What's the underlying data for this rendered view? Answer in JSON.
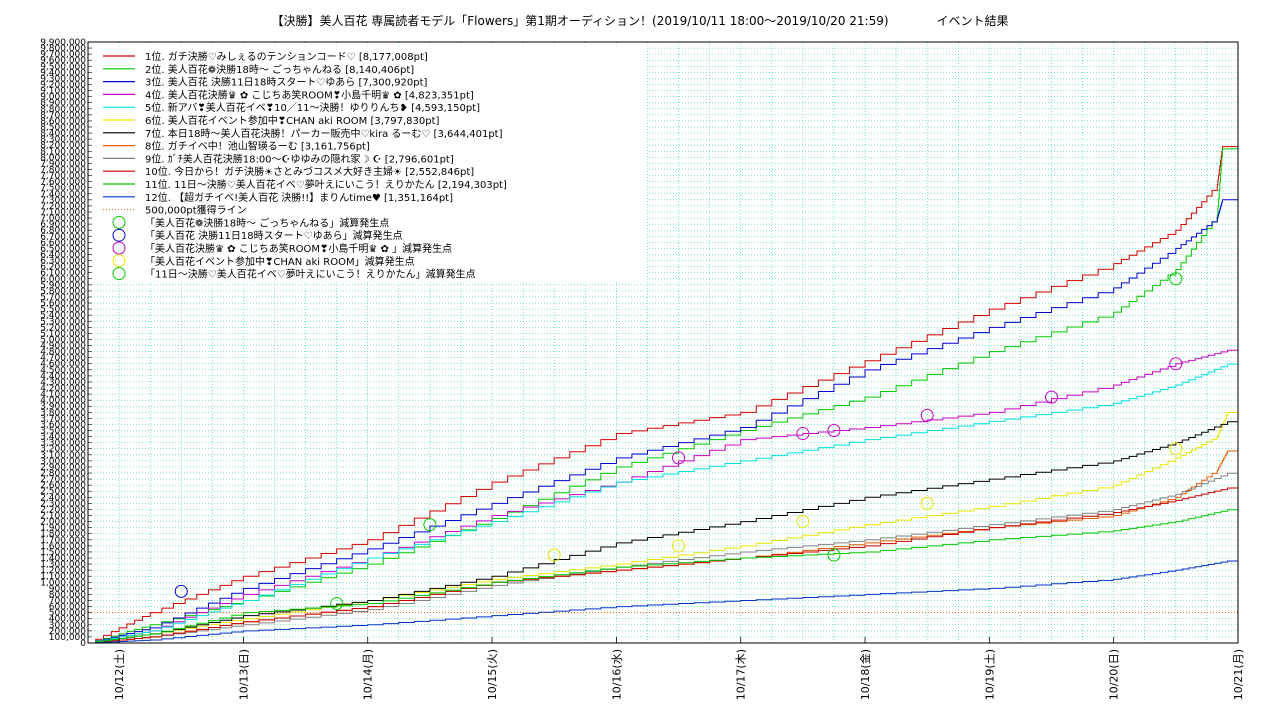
{
  "chart_data": {
    "type": "line",
    "title": "【決勝】美人百花 専属読者モデル「Flowers」第1期オーディション！(2019/10/11 18:00〜2019/10/20 21:59)　　　　イベント結果",
    "xlabel": "",
    "ylabel": "",
    "x_ticks": [
      "10/12(土)",
      "10/13(日)",
      "10/14(月)",
      "10/15(火)",
      "10/16(水)",
      "10/17(木)",
      "10/18(金)",
      "10/19(土)",
      "10/20(日)",
      "10/21(月)"
    ],
    "x_range": [
      "2019-10-11 18:00",
      "2019-10-21 00:00"
    ],
    "ylim": [
      0,
      9900000
    ],
    "y_tick_step": 100000,
    "grid": true,
    "legend_position": "top-left",
    "series": [
      {
        "name": "1位. ガチ決勝♡みしぇるのテンションコード♡ [8,177,008pt]",
        "color": "#d40000",
        "x": [
          "2019-10-11 18:00",
          "2019-10-12 06:00",
          "2019-10-13 00:00",
          "2019-10-14 00:00",
          "2019-10-15 00:00",
          "2019-10-16 00:00",
          "2019-10-17 00:00",
          "2019-10-18 00:00",
          "2019-10-19 00:00",
          "2019-10-20 00:00",
          "2019-10-20 12:00",
          "2019-10-20 20:00",
          "2019-10-20 21:00",
          "2019-10-20 21:59"
        ],
        "values": [
          0,
          500000,
          1100000,
          1700000,
          2650000,
          3450000,
          3800000,
          4650000,
          5500000,
          6250000,
          6800000,
          7550000,
          8177008,
          8177008
        ]
      },
      {
        "name": "2位. 美人百花❁決勝18時〜 ごっちゃんねる [8,140,406pt]",
        "color": "#00c800",
        "x": [
          "2019-10-11 18:00",
          "2019-10-12 06:00",
          "2019-10-13 00:00",
          "2019-10-14 00:00",
          "2019-10-15 00:00",
          "2019-10-16 00:00",
          "2019-10-17 00:00",
          "2019-10-18 00:00",
          "2019-10-19 00:00",
          "2019-10-20 00:00",
          "2019-10-20 12:00",
          "2019-10-20 20:00",
          "2019-10-20 21:00",
          "2019-10-20 21:59"
        ],
        "values": [
          0,
          300000,
          700000,
          1300000,
          2050000,
          2900000,
          3500000,
          4050000,
          4800000,
          5450000,
          6150000,
          7050000,
          8140406,
          8140406
        ]
      },
      {
        "name": "3位. 美人百花 決勝11日18時スタート♡ゆあら [7,300,920pt]",
        "color": "#0000d4",
        "x": [
          "2019-10-11 18:00",
          "2019-10-12 06:00",
          "2019-10-13 00:00",
          "2019-10-14 00:00",
          "2019-10-15 00:00",
          "2019-10-16 00:00",
          "2019-10-17 00:00",
          "2019-10-18 00:00",
          "2019-10-19 00:00",
          "2019-10-20 00:00",
          "2019-10-20 12:00",
          "2019-10-20 20:00",
          "2019-10-20 21:00",
          "2019-10-20 21:59"
        ],
        "values": [
          0,
          250000,
          900000,
          1550000,
          2300000,
          3050000,
          3550000,
          4500000,
          5200000,
          5850000,
          6500000,
          7000000,
          7300920,
          7300920
        ]
      },
      {
        "name": "4位. 美人百花決勝♛ ✿ こじちあ笑ROOM❣小島千明♛ ✿ [4,823,351pt]",
        "color": "#c800c8",
        "x": [
          "2019-10-11 18:00",
          "2019-10-12 06:00",
          "2019-10-13 00:00",
          "2019-10-14 00:00",
          "2019-10-15 00:00",
          "2019-10-16 00:00",
          "2019-10-17 00:00",
          "2019-10-18 00:00",
          "2019-10-19 00:00",
          "2019-10-20 00:00",
          "2019-10-20 12:00",
          "2019-10-20 21:59"
        ],
        "values": [
          0,
          200000,
          800000,
          1400000,
          2100000,
          2650000,
          3350000,
          3550000,
          3800000,
          4250000,
          4600000,
          4823351
        ]
      },
      {
        "name": "5位. 新アバ❣美人百花イベ❣10／11〜決勝！ゆりりんち❥ [4,593,150pt]",
        "color": "#00e0e0",
        "x": [
          "2019-10-11 18:00",
          "2019-10-12 06:00",
          "2019-10-13 00:00",
          "2019-10-14 00:00",
          "2019-10-15 00:00",
          "2019-10-16 00:00",
          "2019-10-17 00:00",
          "2019-10-18 00:00",
          "2019-10-19 00:00",
          "2019-10-20 00:00",
          "2019-10-20 12:00",
          "2019-10-20 21:59"
        ],
        "values": [
          0,
          200000,
          700000,
          1400000,
          2000000,
          2650000,
          3000000,
          3350000,
          3650000,
          3950000,
          4250000,
          4593150
        ]
      },
      {
        "name": "6位. 美人百花イベント参加中❣CHAN aki ROOM [3,797,830pt]",
        "color": "#e6e600",
        "x": [
          "2019-10-11 18:00",
          "2019-10-12 06:00",
          "2019-10-13 00:00",
          "2019-10-14 00:00",
          "2019-10-15 00:00",
          "2019-10-16 00:00",
          "2019-10-17 00:00",
          "2019-10-18 00:00",
          "2019-10-19 00:00",
          "2019-10-20 00:00",
          "2019-10-20 12:00",
          "2019-10-20 20:00",
          "2019-10-20 21:59"
        ],
        "values": [
          0,
          150000,
          400000,
          700000,
          1050000,
          1300000,
          1600000,
          1950000,
          2250000,
          2600000,
          3050000,
          3400000,
          3797830
        ]
      },
      {
        "name": "7位. 本日18時〜美人百花決勝！パーカー販売中♡kira るーむ♡ [3,644,401pt]",
        "color": "#000000",
        "x": [
          "2019-10-11 18:00",
          "2019-10-12 06:00",
          "2019-10-13 00:00",
          "2019-10-14 00:00",
          "2019-10-15 00:00",
          "2019-10-16 00:00",
          "2019-10-17 00:00",
          "2019-10-18 00:00",
          "2019-10-19 00:00",
          "2019-10-20 00:00",
          "2019-10-20 12:00",
          "2019-10-20 21:59"
        ],
        "values": [
          0,
          150000,
          450000,
          700000,
          1100000,
          1650000,
          2000000,
          2400000,
          2700000,
          3000000,
          3300000,
          3644401
        ]
      },
      {
        "name": "8位. ガチイベ中！池山智瑛るーむ [3,161,756pt]",
        "color": "#e65a00",
        "x": [
          "2019-10-11 18:00",
          "2019-10-12 06:00",
          "2019-10-13 00:00",
          "2019-10-14 00:00",
          "2019-10-15 00:00",
          "2019-10-16 00:00",
          "2019-10-17 00:00",
          "2019-10-18 00:00",
          "2019-10-19 00:00",
          "2019-10-20 00:00",
          "2019-10-20 12:00",
          "2019-10-20 20:00",
          "2019-10-20 21:59"
        ],
        "values": [
          0,
          100000,
          350000,
          600000,
          1000000,
          1200000,
          1400000,
          1650000,
          1900000,
          2100000,
          2400000,
          2850000,
          3161756
        ]
      },
      {
        "name": "9位. ｶﾞﾁ美人百花決勝18:00〜☪ゆゆみの隠れ家☽ ☪ [2,796,601pt]",
        "color": "#808080",
        "x": [
          "2019-10-11 18:00",
          "2019-10-12 06:00",
          "2019-10-13 00:00",
          "2019-10-14 00:00",
          "2019-10-15 00:00",
          "2019-10-16 00:00",
          "2019-10-17 00:00",
          "2019-10-18 00:00",
          "2019-10-19 00:00",
          "2019-10-20 00:00",
          "2019-10-20 12:00",
          "2019-10-20 21:59"
        ],
        "values": [
          0,
          100000,
          300000,
          550000,
          950000,
          1250000,
          1500000,
          1700000,
          1950000,
          2200000,
          2450000,
          2796601
        ]
      },
      {
        "name": "10位. 今日から！ガチ決勝☀︎さとみづコスメ大好き主婦☀︎ [2,552,846pt]",
        "color": "#c80000",
        "x": [
          "2019-10-11 18:00",
          "2019-10-12 06:00",
          "2019-10-13 00:00",
          "2019-10-14 00:00",
          "2019-10-15 00:00",
          "2019-10-16 00:00",
          "2019-10-17 00:00",
          "2019-10-18 00:00",
          "2019-10-19 00:00",
          "2019-10-20 00:00",
          "2019-10-20 12:00",
          "2019-10-20 21:59"
        ],
        "values": [
          0,
          100000,
          350000,
          600000,
          1000000,
          1200000,
          1400000,
          1600000,
          1900000,
          2150000,
          2350000,
          2552846
        ]
      },
      {
        "name": "11位. 11日〜決勝♡美人百花イベ♡夢叶えにいこう！えりかたん [2,194,303pt]",
        "color": "#00c800",
        "x": [
          "2019-10-11 18:00",
          "2019-10-12 06:00",
          "2019-10-13 00:00",
          "2019-10-14 00:00",
          "2019-10-15 00:00",
          "2019-10-16 00:00",
          "2019-10-17 00:00",
          "2019-10-18 00:00",
          "2019-10-19 00:00",
          "2019-10-20 00:00",
          "2019-10-20 12:00",
          "2019-10-20 21:59"
        ],
        "values": [
          0,
          150000,
          500000,
          650000,
          1000000,
          1250000,
          1400000,
          1500000,
          1700000,
          1850000,
          2000000,
          2194303
        ]
      },
      {
        "name": "12位. 【超ガチイベ!美人百花 決勝!!】まりんtime♥ [1,351,164pt]",
        "color": "#0032c8",
        "x": [
          "2019-10-11 18:00",
          "2019-10-12 06:00",
          "2019-10-13 00:00",
          "2019-10-14 00:00",
          "2019-10-15 00:00",
          "2019-10-16 00:00",
          "2019-10-17 00:00",
          "2019-10-18 00:00",
          "2019-10-19 00:00",
          "2019-10-20 00:00",
          "2019-10-20 12:00",
          "2019-10-20 21:59"
        ],
        "values": [
          0,
          50000,
          200000,
          300000,
          450000,
          600000,
          700000,
          800000,
          900000,
          1050000,
          1200000,
          1351164
        ]
      }
    ],
    "reference_line": {
      "name": "500,000pt獲得ライン",
      "value": 500000,
      "color": "#e65a00"
    },
    "markers": [
      {
        "name": "「美人百花❁決勝18時〜 ごっちゃんねる」減算発生点",
        "color": "#00c800",
        "points": [
          {
            "x": "2019-10-20 12:00",
            "y": 6000000
          }
        ]
      },
      {
        "name": "「美人百花 決勝11日18時スタート♡ゆあら」減算発生点",
        "color": "#0000d4",
        "points": [
          {
            "x": "2019-10-12 12:00",
            "y": 850000
          }
        ]
      },
      {
        "name": "「美人百花決勝♛ ✿ こじちあ笑ROOM❣小島千明♛ ✿ 」減算発生点",
        "color": "#c800c8",
        "points": [
          {
            "x": "2019-10-16 12:00",
            "y": 3050000
          },
          {
            "x": "2019-10-17 12:00",
            "y": 3450000
          },
          {
            "x": "2019-10-17 18:00",
            "y": 3500000
          },
          {
            "x": "2019-10-18 12:00",
            "y": 3750000
          },
          {
            "x": "2019-10-19 12:00",
            "y": 4050000
          },
          {
            "x": "2019-10-20 12:00",
            "y": 4600000
          }
        ]
      },
      {
        "name": "「美人百花イベント参加中❣CHAN aki ROOM」減算発生点",
        "color": "#e6e600",
        "points": [
          {
            "x": "2019-10-15 12:00",
            "y": 1450000
          },
          {
            "x": "2019-10-16 12:00",
            "y": 1600000
          },
          {
            "x": "2019-10-17 12:00",
            "y": 2000000
          },
          {
            "x": "2019-10-18 12:00",
            "y": 2300000
          },
          {
            "x": "2019-10-20 12:00",
            "y": 3200000
          }
        ]
      },
      {
        "name": "「11日〜決勝♡美人百花イベ♡夢叶えにいこう！えりかたん」減算発生点",
        "color": "#00c800",
        "points": [
          {
            "x": "2019-10-13 18:00",
            "y": 650000
          },
          {
            "x": "2019-10-14 12:00",
            "y": 1950000
          },
          {
            "x": "2019-10-17 18:00",
            "y": 1450000
          }
        ]
      }
    ]
  }
}
